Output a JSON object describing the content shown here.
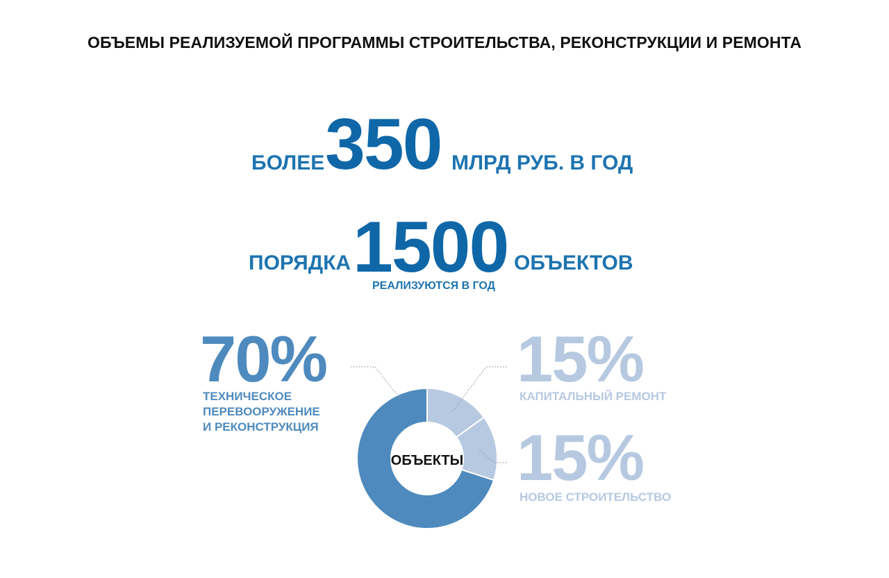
{
  "title": "ОБЪЕМЫ РЕАЛИЗУЕМОЙ ПРОГРАММЫ СТРОИТЕЛЬСТВА, РЕКОНСТРУКЦИИ И РЕМОНТА",
  "stats": {
    "investment": {
      "prefix": "БОЛЕЕ",
      "value": "350",
      "suffix": "МЛРД РУБ. В ГОД"
    },
    "objects": {
      "prefix": "ПОРЯДКА",
      "value": "1500",
      "suffix": "ОБЪЕКТОВ",
      "subtitle": "РЕАЛИЗУЮТСЯ В ГОД"
    }
  },
  "legend": {
    "tech": {
      "percent": "70%",
      "label_lines": [
        "ТЕХНИЧЕСКОЕ",
        "ПЕРЕВООРУЖЕНИЕ",
        "И РЕКОНСТРУКЦИЯ"
      ]
    },
    "repair": {
      "percent": "15%",
      "label": "КАПИТАЛЬНЫЙ РЕМОНТ"
    },
    "new": {
      "percent": "15%",
      "label": "НОВОЕ СТРОИТЕЛЬСТВО"
    }
  },
  "chart_data": {
    "type": "pie",
    "variant": "donut",
    "center_label": "ОБЪЕКТЫ",
    "slices": [
      {
        "label": "КАПИТАЛЬНЫЙ РЕМОНТ",
        "value": 15,
        "color": "#b6c9e1"
      },
      {
        "label": "НОВОЕ СТРОИТЕЛЬСТВО",
        "value": 15,
        "color": "#b6c9e1"
      },
      {
        "label": "ТЕХНИЧЕСКОЕ ПЕРЕВООРУЖЕНИЕ И РЕКОНСТРУКЦИЯ",
        "value": 70,
        "color": "#4e8abe"
      }
    ]
  },
  "colors": {
    "accent_dark": "#0f67a8",
    "accent_mid": "#4e8abe",
    "accent_light": "#b6c9e1",
    "title": "#111111"
  }
}
